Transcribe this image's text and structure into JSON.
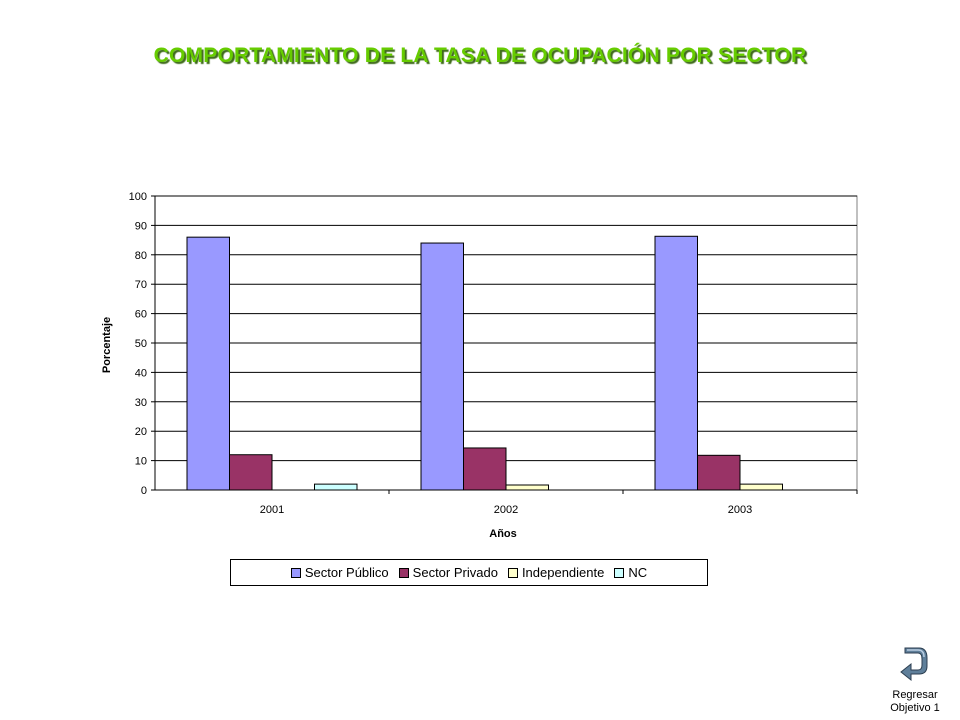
{
  "title": "COMPORTAMIENTO DE LA TASA DE OCUPACIÓN POR SECTOR",
  "colors": {
    "title": "#66cc00",
    "sector_publico": "#9999ff",
    "sector_privado": "#993366",
    "independiente": "#ffffcc",
    "nc": "#ccffff"
  },
  "chart_data": {
    "type": "bar",
    "categories": [
      "2001",
      "2002",
      "2003"
    ],
    "series": [
      {
        "name": "Sector Público",
        "values": [
          86,
          84,
          86.3
        ]
      },
      {
        "name": "Sector Privado",
        "values": [
          12,
          14.3,
          11.8
        ]
      },
      {
        "name": "Independiente",
        "values": [
          0,
          1.7,
          2
        ]
      },
      {
        "name": "NC",
        "values": [
          2,
          0,
          0
        ]
      }
    ],
    "xlabel": "Años",
    "ylabel": "Porcentaje",
    "ylim": [
      0,
      100
    ],
    "yticks": [
      0,
      10,
      20,
      30,
      40,
      50,
      60,
      70,
      80,
      90,
      100
    ],
    "grid": true,
    "legend": "bottom"
  },
  "nav": {
    "return_line1": "Regresar",
    "return_line2": "Objetivo 1",
    "icon": "return-arrow-icon"
  }
}
